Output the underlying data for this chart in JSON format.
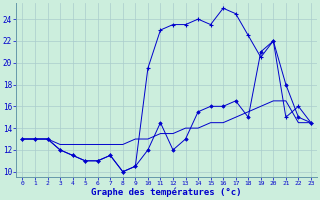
{
  "xlabel": "Graphe des températures (°c)",
  "bg_color": "#cceedd",
  "grid_color": "#aacccc",
  "line_color": "#0000cc",
  "series1_diamond": [
    13,
    13,
    13,
    12,
    11.5,
    11,
    11,
    11.5,
    10,
    10.5,
    12,
    14.5,
    12,
    13,
    15.5,
    16,
    16,
    16.5,
    15,
    21,
    22,
    18,
    15,
    14.5
  ],
  "series2_plus": [
    13,
    13,
    13,
    12,
    11.5,
    11,
    11,
    11.5,
    10,
    10.5,
    19.5,
    23,
    23.5,
    23.5,
    24,
    23.5,
    25,
    24.5,
    22.5,
    20.5,
    22,
    15,
    16,
    14.5
  ],
  "series3_smooth": [
    13,
    13,
    13,
    12.5,
    12.5,
    12.5,
    12.5,
    12.5,
    12.5,
    13,
    13,
    13.5,
    13.5,
    14,
    14,
    14.5,
    14.5,
    15,
    15.5,
    16,
    16.5,
    16.5,
    14.5,
    14.5
  ],
  "xlim": [
    -0.5,
    23.5
  ],
  "ylim": [
    9.5,
    25.5
  ],
  "yticks": [
    10,
    12,
    14,
    16,
    18,
    20,
    22,
    24
  ],
  "xticks": [
    0,
    1,
    2,
    3,
    4,
    5,
    6,
    7,
    8,
    9,
    10,
    11,
    12,
    13,
    14,
    15,
    16,
    17,
    18,
    19,
    20,
    21,
    22,
    23
  ]
}
